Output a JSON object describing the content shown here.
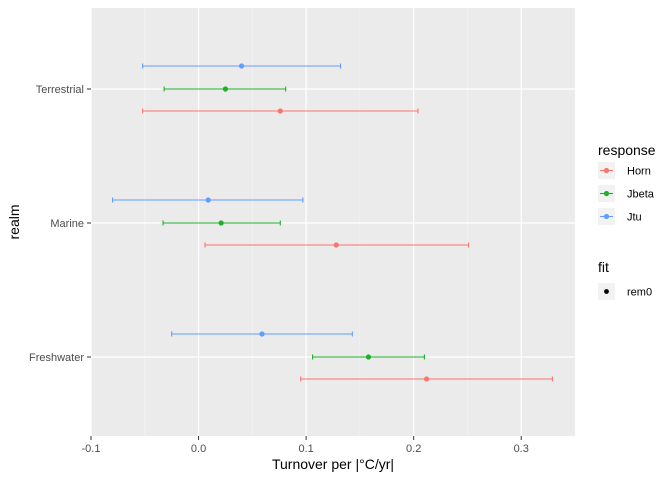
{
  "chart_data": {
    "type": "errorbar",
    "xlabel": "Turnover per |°C/yr|",
    "ylabel": "realm",
    "xlim": [
      -0.1,
      0.35
    ],
    "x_ticks": [
      -0.1,
      0.0,
      0.1,
      0.2,
      0.3
    ],
    "x_tick_labels": [
      "-0.1",
      "0.0",
      "0.1",
      "0.2",
      "0.3"
    ],
    "categories": [
      "Terrestrial",
      "Marine",
      "Freshwater"
    ],
    "grid": true,
    "legend_placement": "right",
    "legend": {
      "response": {
        "title": "response",
        "entries": [
          "Horn",
          "Jbeta",
          "Jtu"
        ]
      },
      "fit": {
        "title": "fit",
        "entries": [
          "rem0"
        ]
      }
    },
    "colors": {
      "Horn": "#f8766d",
      "Jbeta": "#1fb02a",
      "Jtu": "#619cff"
    },
    "series": [
      {
        "name": "Horn",
        "points": [
          {
            "category": "Terrestrial",
            "x": 0.076,
            "low": -0.052,
            "high": 0.204
          },
          {
            "category": "Marine",
            "x": 0.128,
            "low": 0.006,
            "high": 0.251
          },
          {
            "category": "Freshwater",
            "x": 0.212,
            "low": 0.095,
            "high": 0.329
          }
        ]
      },
      {
        "name": "Jbeta",
        "points": [
          {
            "category": "Terrestrial",
            "x": 0.025,
            "low": -0.032,
            "high": 0.081
          },
          {
            "category": "Marine",
            "x": 0.021,
            "low": -0.033,
            "high": 0.076
          },
          {
            "category": "Freshwater",
            "x": 0.158,
            "low": 0.106,
            "high": 0.21
          }
        ]
      },
      {
        "name": "Jtu",
        "points": [
          {
            "category": "Terrestrial",
            "x": 0.04,
            "low": -0.052,
            "high": 0.132
          },
          {
            "category": "Marine",
            "x": 0.009,
            "low": -0.08,
            "high": 0.097
          },
          {
            "category": "Freshwater",
            "x": 0.059,
            "low": -0.025,
            "high": 0.143
          }
        ]
      }
    ]
  }
}
